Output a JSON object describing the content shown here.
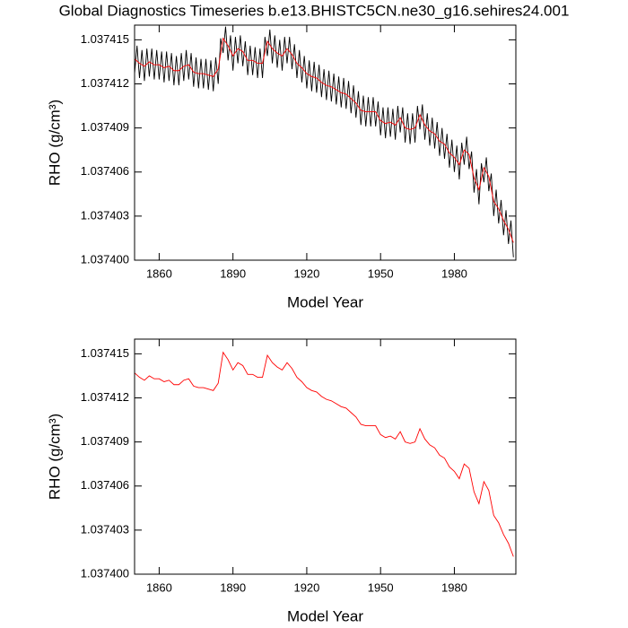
{
  "chart_data": [
    {
      "type": "line",
      "title": "Global Diagnostics Timeseries b.e13.BHISTC5CN.ne30_g16.sehires24.001",
      "x_label": "Model Year",
      "y_label": "RHO (g/cm³)",
      "xlim": [
        1850,
        2005
      ],
      "xticks": [
        1860,
        1890,
        1920,
        1950,
        1980
      ],
      "ylim": [
        1.0374,
        1.037416
      ],
      "yticks": [
        {
          "value": 1.0374,
          "label": "1.037400"
        },
        1.037403,
        1.037406,
        1.037409,
        1.037412,
        1.037415
      ],
      "series": [
        {
          "color": "#000000",
          "x": [
            1850,
            1851,
            1852,
            1853,
            1854,
            1855,
            1856,
            1857,
            1858,
            1859,
            1860,
            1861,
            1862,
            1863,
            1864,
            1865,
            1866,
            1867,
            1868,
            1869,
            1870,
            1871,
            1872,
            1873,
            1874,
            1875,
            1876,
            1877,
            1878,
            1879,
            1880,
            1881,
            1882,
            1883,
            1884,
            1885,
            1886,
            1887,
            1888,
            1889,
            1890,
            1891,
            1892,
            1893,
            1894,
            1895,
            1896,
            1897,
            1898,
            1899,
            1900,
            1901,
            1902,
            1903,
            1904,
            1905,
            1906,
            1907,
            1908,
            1909,
            1910,
            1911,
            1912,
            1913,
            1914,
            1915,
            1916,
            1917,
            1918,
            1919,
            1920,
            1921,
            1922,
            1923,
            1924,
            1925,
            1926,
            1927,
            1928,
            1929,
            1930,
            1931,
            1932,
            1933,
            1934,
            1935,
            1936,
            1937,
            1938,
            1939,
            1940,
            1941,
            1942,
            1943,
            1944,
            1945,
            1946,
            1947,
            1948,
            1949,
            1950,
            1951,
            1952,
            1953,
            1954,
            1955,
            1956,
            1957,
            1958,
            1959,
            1960,
            1961,
            1962,
            1963,
            1964,
            1965,
            1966,
            1967,
            1968,
            1969,
            1970,
            1971,
            1972,
            1973,
            1974,
            1975,
            1976,
            1977,
            1978,
            1979,
            1980,
            1981,
            1982,
            1983,
            1984,
            1985,
            1986,
            1987,
            1988,
            1989,
            1990,
            1991,
            1992,
            1993,
            1994,
            1995,
            1996,
            1997,
            1998,
            1999,
            2000,
            2001,
            2002,
            2003,
            2004
          ],
          "values": [
            1.0374127,
            1.0374146,
            1.0374124,
            1.0374143,
            1.0374122,
            1.0374144,
            1.0374125,
            1.0374144,
            1.0374123,
            1.0374143,
            1.0374123,
            1.0374142,
            1.0374121,
            1.0374142,
            1.0374122,
            1.0374141,
            1.0374119,
            1.0374139,
            1.0374119,
            1.0374141,
            1.0374122,
            1.0374143,
            1.0374123,
            1.0374141,
            1.0374118,
            1.0374138,
            1.0374117,
            1.0374137,
            1.0374117,
            1.0374137,
            1.0374116,
            1.0374136,
            1.0374115,
            1.0374138,
            1.037412,
            1.0374151,
            1.0374141,
            1.0374159,
            1.0374136,
            1.0374153,
            1.0374129,
            1.0374152,
            1.0374134,
            1.0374153,
            1.0374132,
            1.0374149,
            1.0374126,
            1.0374146,
            1.0374126,
            1.0374145,
            1.0374124,
            1.0374144,
            1.0374124,
            1.0374152,
            1.0374139,
            1.0374157,
            1.0374134,
            1.0374153,
            1.0374131,
            1.037415,
            1.0374129,
            1.0374152,
            1.0374134,
            1.0374152,
            1.037413,
            1.0374147,
            1.0374124,
            1.0374143,
            1.0374121,
            1.0374139,
            1.0374117,
            1.0374136,
            1.0374115,
            1.0374135,
            1.0374114,
            1.0374133,
            1.0374111,
            1.037413,
            1.0374109,
            1.0374129,
            1.0374108,
            1.0374127,
            1.0374106,
            1.0374125,
            1.0374104,
            1.0374124,
            1.0374103,
            1.0374122,
            1.03741,
            1.0374119,
            1.0374097,
            1.0374115,
            1.0374092,
            1.0374112,
            1.0374091,
            1.0374111,
            1.0374091,
            1.0374111,
            1.0374091,
            1.0374108,
            1.0374085,
            1.0374104,
            1.0374083,
            1.0374104,
            1.0374084,
            1.0374103,
            1.0374082,
            1.0374105,
            1.0374087,
            1.0374104,
            1.037408,
            1.03741,
            1.0374079,
            1.03741,
            1.037408,
            1.0374105,
            1.0374089,
            1.0374106,
            1.0374082,
            1.03741,
            1.0374078,
            1.0374097,
            1.0374076,
            1.0374094,
            1.0374071,
            1.037409,
            1.0374069,
            1.0374086,
            1.0374063,
            1.0374082,
            1.037406,
            1.0374078,
            1.0374055,
            1.037408,
            1.0374065,
            1.0374084,
            1.0374062,
            1.0374074,
            1.0374046,
            1.0374062,
            1.0374038,
            1.0374066,
            1.0374053,
            1.037407,
            1.0374047,
            1.0374059,
            1.037403,
            1.0374048,
            1.0374025,
            1.0374041,
            1.0374017,
            1.0374034,
            1.0374011,
            1.0374027,
            1.0374002
          ]
        },
        {
          "color": "#ff0000",
          "x": [
            1850,
            1852,
            1854,
            1856,
            1858,
            1860,
            1862,
            1864,
            1866,
            1868,
            1870,
            1872,
            1874,
            1876,
            1878,
            1880,
            1882,
            1884,
            1886,
            1888,
            1890,
            1892,
            1894,
            1896,
            1898,
            1900,
            1902,
            1904,
            1906,
            1908,
            1910,
            1912,
            1914,
            1916,
            1918,
            1920,
            1922,
            1924,
            1926,
            1928,
            1930,
            1932,
            1934,
            1936,
            1938,
            1940,
            1942,
            1944,
            1946,
            1948,
            1950,
            1952,
            1954,
            1956,
            1958,
            1960,
            1962,
            1964,
            1966,
            1968,
            1970,
            1972,
            1974,
            1976,
            1978,
            1980,
            1982,
            1984,
            1986,
            1988,
            1990,
            1992,
            1994,
            1996,
            1998,
            2000,
            2002,
            2004
          ],
          "values": [
            1.0374137,
            1.0374134,
            1.0374132,
            1.0374135,
            1.0374133,
            1.0374133,
            1.0374131,
            1.0374132,
            1.0374129,
            1.0374129,
            1.0374132,
            1.0374133,
            1.0374128,
            1.0374127,
            1.0374127,
            1.0374126,
            1.0374125,
            1.037413,
            1.0374151,
            1.0374146,
            1.0374139,
            1.0374144,
            1.0374142,
            1.0374136,
            1.0374136,
            1.0374134,
            1.0374134,
            1.0374149,
            1.0374144,
            1.0374141,
            1.0374139,
            1.0374144,
            1.037414,
            1.0374134,
            1.0374131,
            1.0374127,
            1.0374125,
            1.0374124,
            1.0374121,
            1.0374119,
            1.0374118,
            1.0374116,
            1.0374114,
            1.0374113,
            1.037411,
            1.0374107,
            1.0374102,
            1.0374101,
            1.0374101,
            1.0374101,
            1.0374095,
            1.0374093,
            1.0374094,
            1.0374092,
            1.0374097,
            1.037409,
            1.0374089,
            1.037409,
            1.0374099,
            1.0374092,
            1.0374088,
            1.0374086,
            1.0374081,
            1.0374079,
            1.0374073,
            1.037407,
            1.0374065,
            1.0374075,
            1.0374072,
            1.0374056,
            1.0374048,
            1.0374063,
            1.0374057,
            1.037404,
            1.0374035,
            1.0374027,
            1.0374021,
            1.0374012
          ]
        }
      ]
    },
    {
      "type": "line",
      "x_label": "Model Year",
      "y_label": "RHO (g/cm³)",
      "xlim": [
        1850,
        2005
      ],
      "xticks": [
        1860,
        1890,
        1920,
        1950,
        1980
      ],
      "ylim": [
        1.0374,
        1.037416
      ],
      "yticks": [
        {
          "value": 1.0374,
          "label": "1.037400"
        },
        1.037403,
        1.037406,
        1.037409,
        1.037412,
        1.037415
      ],
      "series": [
        {
          "color": "#ff0000",
          "x": [
            1850,
            1852,
            1854,
            1856,
            1858,
            1860,
            1862,
            1864,
            1866,
            1868,
            1870,
            1872,
            1874,
            1876,
            1878,
            1880,
            1882,
            1884,
            1886,
            1888,
            1890,
            1892,
            1894,
            1896,
            1898,
            1900,
            1902,
            1904,
            1906,
            1908,
            1910,
            1912,
            1914,
            1916,
            1918,
            1920,
            1922,
            1924,
            1926,
            1928,
            1930,
            1932,
            1934,
            1936,
            1938,
            1940,
            1942,
            1944,
            1946,
            1948,
            1950,
            1952,
            1954,
            1956,
            1958,
            1960,
            1962,
            1964,
            1966,
            1968,
            1970,
            1972,
            1974,
            1976,
            1978,
            1980,
            1982,
            1984,
            1986,
            1988,
            1990,
            1992,
            1994,
            1996,
            1998,
            2000,
            2002,
            2004
          ],
          "values": [
            1.0374137,
            1.0374134,
            1.0374132,
            1.0374135,
            1.0374133,
            1.0374133,
            1.0374131,
            1.0374132,
            1.0374129,
            1.0374129,
            1.0374132,
            1.0374133,
            1.0374128,
            1.0374127,
            1.0374127,
            1.0374126,
            1.0374125,
            1.037413,
            1.0374151,
            1.0374146,
            1.0374139,
            1.0374144,
            1.0374142,
            1.0374136,
            1.0374136,
            1.0374134,
            1.0374134,
            1.0374149,
            1.0374144,
            1.0374141,
            1.0374139,
            1.0374144,
            1.037414,
            1.0374134,
            1.0374131,
            1.0374127,
            1.0374125,
            1.0374124,
            1.0374121,
            1.0374119,
            1.0374118,
            1.0374116,
            1.0374114,
            1.0374113,
            1.037411,
            1.0374107,
            1.0374102,
            1.0374101,
            1.0374101,
            1.0374101,
            1.0374095,
            1.0374093,
            1.0374094,
            1.0374092,
            1.0374097,
            1.037409,
            1.0374089,
            1.037409,
            1.0374099,
            1.0374092,
            1.0374088,
            1.0374086,
            1.0374081,
            1.0374079,
            1.0374073,
            1.037407,
            1.0374065,
            1.0374075,
            1.0374072,
            1.0374056,
            1.0374048,
            1.0374063,
            1.0374057,
            1.037404,
            1.0374035,
            1.0374027,
            1.0374021,
            1.0374012
          ]
        }
      ]
    }
  ]
}
